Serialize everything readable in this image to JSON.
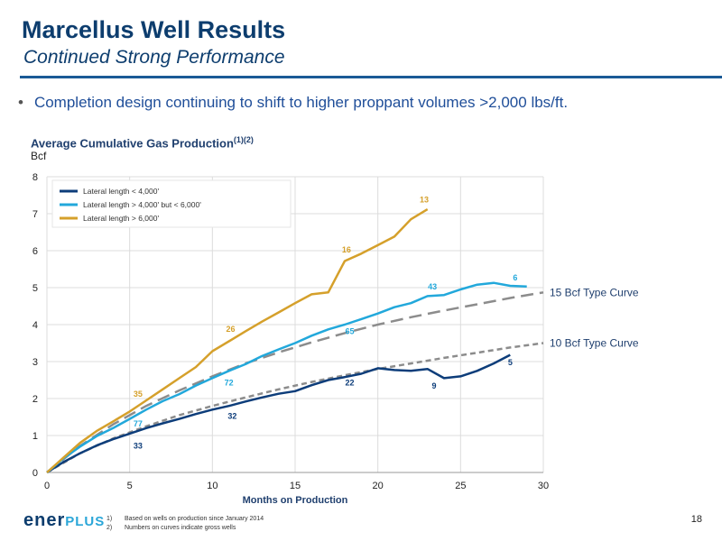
{
  "slide": {
    "title": "Marcellus Well Results",
    "subtitle": "Continued Strong Performance",
    "bullet": "Completion design continuing to shift to higher proppant volumes >2,000 lbs/ft.",
    "page_number": "18",
    "logo": {
      "main": "ener",
      "accent": "PLUS"
    },
    "footnotes": [
      {
        "num": "1)",
        "text": "Based on wells on production since January 2014"
      },
      {
        "num": "2)",
        "text": "Numbers on curves indicate gross wells"
      }
    ]
  },
  "chart_data": {
    "type": "line",
    "title": "Average Cumulative Gas Production",
    "title_sup": "(1)(2)",
    "ylabel": "Bcf",
    "xlabel": "Months on Production",
    "xlim": [
      0,
      30
    ],
    "ylim": [
      0,
      8
    ],
    "x_ticks": [
      0,
      5,
      10,
      15,
      20,
      25,
      30
    ],
    "y_ticks": [
      0,
      1,
      2,
      3,
      4,
      5,
      6,
      7,
      8
    ],
    "grid": true,
    "legend_position": "top-left",
    "series": [
      {
        "name": "Lateral length < 4,000'",
        "color": "#0d3d7a",
        "x": [
          0,
          1,
          2,
          3,
          4,
          5,
          6,
          7,
          8,
          9,
          10,
          11,
          12,
          13,
          14,
          15,
          16,
          17,
          18,
          19,
          20,
          21,
          22,
          23,
          24,
          25,
          26,
          27,
          28
        ],
        "y": [
          0,
          0.28,
          0.52,
          0.73,
          0.9,
          1.05,
          1.2,
          1.33,
          1.45,
          1.58,
          1.7,
          1.8,
          1.92,
          2.03,
          2.13,
          2.2,
          2.36,
          2.5,
          2.58,
          2.67,
          2.82,
          2.77,
          2.75,
          2.8,
          2.55,
          2.6,
          2.75,
          2.95,
          3.18
        ],
        "labels": [
          {
            "x": 5.5,
            "y": 0.65,
            "text": "33"
          },
          {
            "x": 11.2,
            "y": 1.45,
            "text": "32"
          },
          {
            "x": 18.3,
            "y": 2.35,
            "text": "22"
          },
          {
            "x": 23.4,
            "y": 2.27,
            "text": "9"
          },
          {
            "x": 28.0,
            "y": 2.9,
            "text": "5"
          }
        ]
      },
      {
        "name": "Lateral length > 4,000' but < 6,000'",
        "color": "#22a8db",
        "x": [
          0,
          1,
          2,
          3,
          4,
          5,
          6,
          7,
          8,
          9,
          10,
          11,
          12,
          13,
          14,
          15,
          16,
          17,
          18,
          19,
          20,
          21,
          22,
          23,
          24,
          25,
          26,
          27,
          28,
          29
        ],
        "y": [
          0,
          0.38,
          0.7,
          0.98,
          1.2,
          1.45,
          1.7,
          1.93,
          2.12,
          2.35,
          2.55,
          2.75,
          2.93,
          3.15,
          3.33,
          3.5,
          3.7,
          3.87,
          4.0,
          4.15,
          4.3,
          4.47,
          4.58,
          4.77,
          4.8,
          4.95,
          5.08,
          5.13,
          5.05,
          5.03
        ],
        "labels": [
          {
            "x": 5.5,
            "y": 1.25,
            "text": "77"
          },
          {
            "x": 11.0,
            "y": 2.35,
            "text": "72"
          },
          {
            "x": 18.3,
            "y": 3.75,
            "text": "65"
          },
          {
            "x": 23.3,
            "y": 4.95,
            "text": "43"
          },
          {
            "x": 28.3,
            "y": 5.2,
            "text": "6"
          }
        ]
      },
      {
        "name": "Lateral length > 6,000'",
        "color": "#d5a02b",
        "x": [
          0,
          1,
          2,
          3,
          4,
          5,
          6,
          7,
          8,
          9,
          10,
          11,
          12,
          13,
          14,
          15,
          16,
          17,
          18,
          19,
          20,
          21,
          22,
          23
        ],
        "y": [
          0,
          0.4,
          0.8,
          1.12,
          1.38,
          1.65,
          1.95,
          2.25,
          2.55,
          2.85,
          3.28,
          3.55,
          3.82,
          4.08,
          4.33,
          4.58,
          4.82,
          4.87,
          5.72,
          5.92,
          6.15,
          6.38,
          6.85,
          7.12
        ],
        "labels": [
          {
            "x": 5.5,
            "y": 2.05,
            "text": "35"
          },
          {
            "x": 11.1,
            "y": 3.8,
            "text": "26"
          },
          {
            "x": 18.1,
            "y": 5.95,
            "text": "16"
          },
          {
            "x": 22.8,
            "y": 7.3,
            "text": "13"
          }
        ]
      }
    ],
    "type_curves": [
      {
        "name": "15 Bcf Type Curve",
        "color": "#8c8c8c",
        "style": "long-dash",
        "x": [
          0,
          2,
          4,
          6,
          8,
          10,
          12,
          14,
          16,
          18,
          20,
          22,
          24,
          26,
          28,
          30
        ],
        "y": [
          0,
          0.72,
          1.3,
          1.8,
          2.22,
          2.6,
          2.95,
          3.25,
          3.52,
          3.77,
          4.0,
          4.2,
          4.38,
          4.55,
          4.72,
          4.87
        ]
      },
      {
        "name": "10 Bcf Type Curve",
        "color": "#8c8c8c",
        "style": "short-dash",
        "x": [
          0,
          2,
          4,
          6,
          8,
          10,
          12,
          14,
          16,
          18,
          20,
          22,
          24,
          26,
          28,
          30
        ],
        "y": [
          0,
          0.52,
          0.92,
          1.25,
          1.55,
          1.8,
          2.03,
          2.25,
          2.45,
          2.63,
          2.8,
          2.95,
          3.1,
          3.24,
          3.38,
          3.5
        ]
      }
    ]
  }
}
